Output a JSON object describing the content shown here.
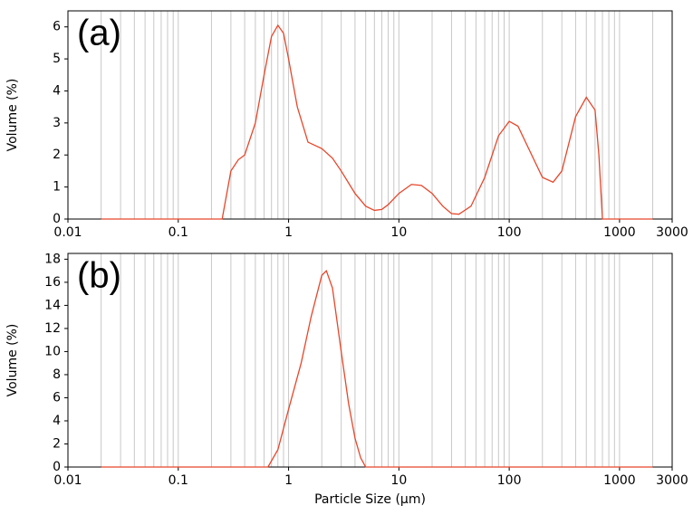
{
  "chart_data": [
    {
      "type": "line",
      "annotation": "(a)",
      "y_label": "Volume (%)",
      "log_x": true,
      "grid": true,
      "color": "#e8462a",
      "xlim": [
        0.01,
        3000
      ],
      "xticks": [
        0.01,
        0.1,
        1,
        10,
        100,
        1000,
        3000
      ],
      "ylim": [
        0,
        6.5
      ],
      "yticks": [
        0,
        1,
        2,
        3,
        4,
        5,
        6
      ],
      "x": [
        0.02,
        0.25,
        0.3,
        0.35,
        0.4,
        0.5,
        0.6,
        0.7,
        0.8,
        0.9,
        1.0,
        1.2,
        1.5,
        2,
        2.5,
        3,
        4,
        5,
        6,
        7,
        8,
        10,
        13,
        16,
        20,
        25,
        30,
        35,
        45,
        60,
        80,
        100,
        120,
        150,
        200,
        250,
        300,
        400,
        500,
        600,
        650,
        700,
        800,
        2000
      ],
      "values": [
        0,
        0,
        1.5,
        1.85,
        2.0,
        3.0,
        4.5,
        5.7,
        6.05,
        5.8,
        5.0,
        3.5,
        2.4,
        2.2,
        1.9,
        1.5,
        0.8,
        0.4,
        0.27,
        0.3,
        0.45,
        0.8,
        1.08,
        1.05,
        0.8,
        0.4,
        0.17,
        0.15,
        0.4,
        1.3,
        2.6,
        3.05,
        2.9,
        2.2,
        1.3,
        1.15,
        1.5,
        3.2,
        3.8,
        3.4,
        2.0,
        0,
        0,
        0
      ]
    },
    {
      "type": "line",
      "annotation": "(b)",
      "y_label": "Volume (%)",
      "x_label": "Particle Size (µm)",
      "log_x": true,
      "grid": true,
      "color": "#e8462a",
      "xlim": [
        0.01,
        3000
      ],
      "xticks": [
        0.01,
        0.1,
        1,
        10,
        100,
        1000,
        3000
      ],
      "ylim": [
        0,
        18.5
      ],
      "yticks": [
        0,
        2,
        4,
        6,
        8,
        10,
        12,
        14,
        16,
        18
      ],
      "x": [
        0.02,
        0.65,
        0.8,
        1.0,
        1.3,
        1.6,
        2.0,
        2.2,
        2.5,
        3.0,
        3.5,
        4,
        4.5,
        5,
        2000
      ],
      "values": [
        0,
        0,
        1.5,
        5,
        9,
        13,
        16.6,
        17,
        15.5,
        10,
        5.5,
        2.5,
        0.8,
        0,
        0
      ]
    }
  ]
}
